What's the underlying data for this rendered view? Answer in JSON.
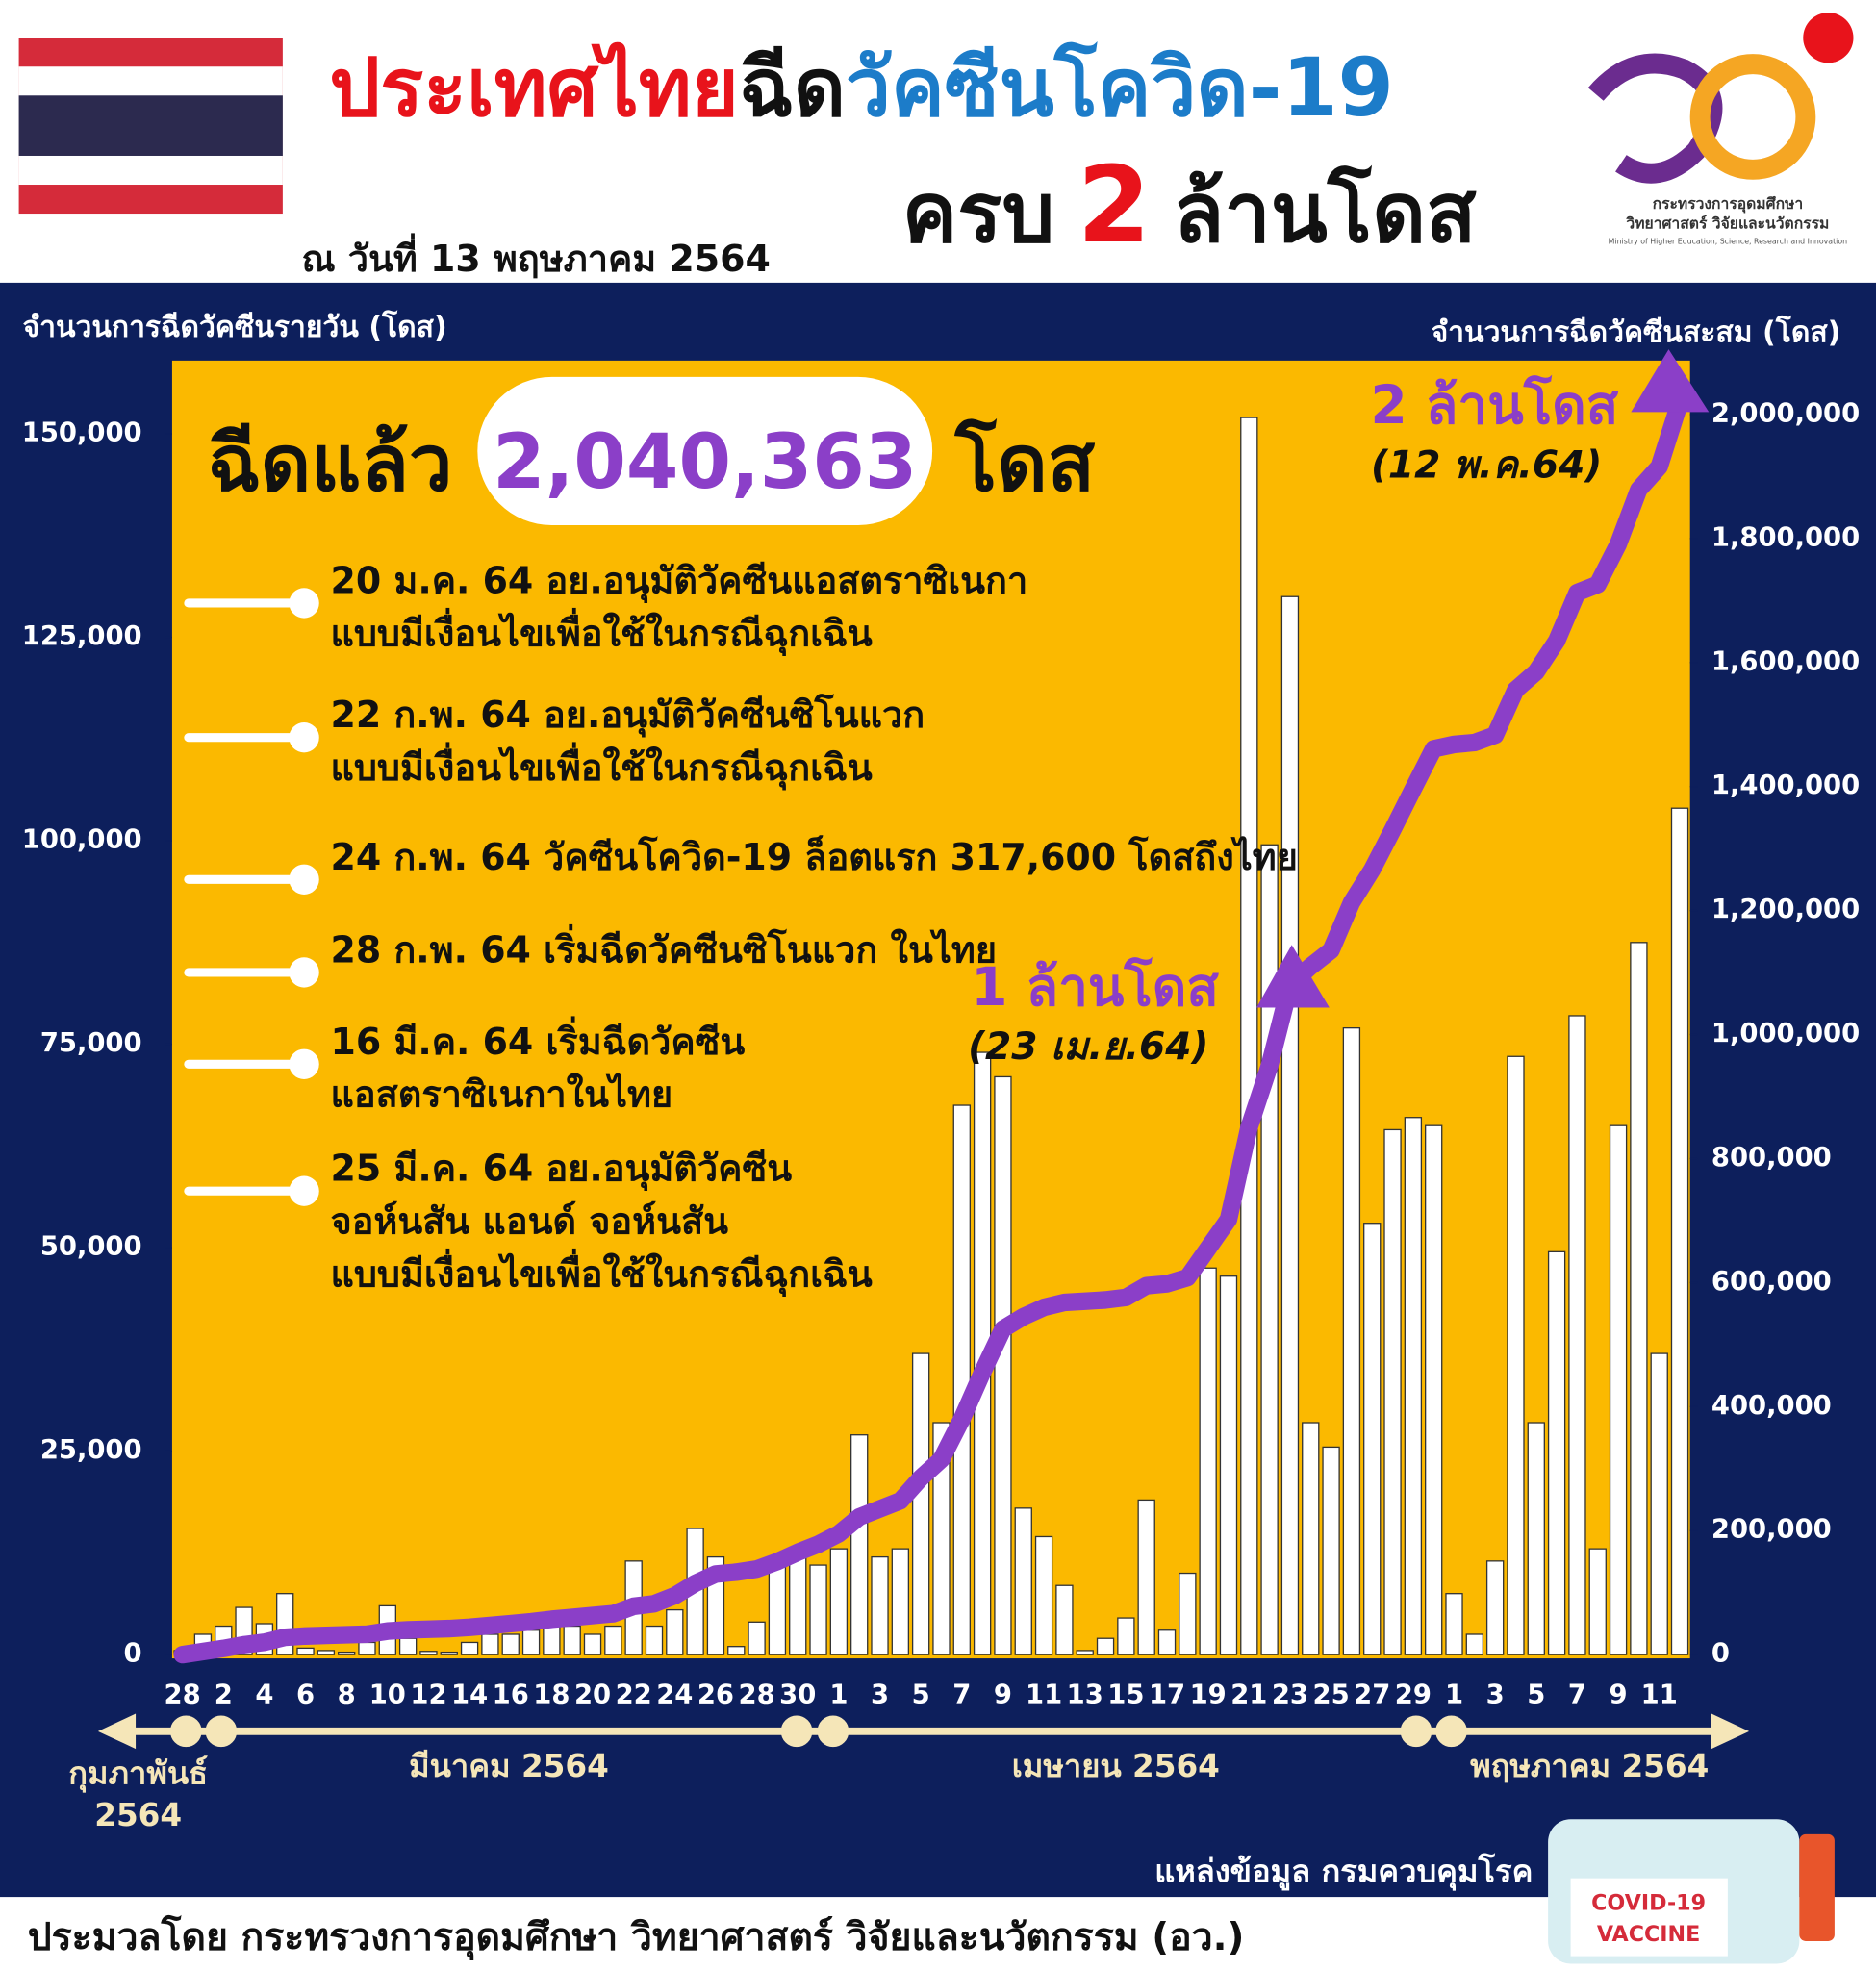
{
  "header": {
    "title_1": "ประเทศไทย",
    "title_2": "ฉีด",
    "title_3": "วัคซีนโควิด-19",
    "subtitle_1": "ครบ",
    "subtitle_2": "2",
    "subtitle_3": "ล้านโดส",
    "date": "ณ วันที่ 13 พฤษภาคม 2564"
  },
  "logo": {
    "line_1": "กระทรวงการอุดมศึกษา",
    "line_2": "วิทยาศาสตร์ วิจัยและนวัตกรรม",
    "line_3": "Ministry of Higher Education, Science, Research and Innovation"
  },
  "chart_data": {
    "type": "bar",
    "y_label": "จำนวนการฉีดวัคซีนรายวัน (โดส)",
    "y2_label": "จำนวนการฉีดวัคซีนสะสม (โดส)",
    "total_prefix": "ฉีดแล้ว",
    "total": "2,040,363",
    "total_suffix": "โดส",
    "events": [
      {
        "lines": [
          "20 ม.ค. 64 อย.อนุมัติวัคซีนแอสตราซิเนกา",
          "แบบมีเงื่อนไขเพื่อใช้ในกรณีฉุกเฉิน"
        ]
      },
      {
        "lines": [
          "22 ก.พ. 64 อย.อนุมัติวัคซีนซิโนแวก",
          "แบบมีเงื่อนไขเพื่อใช้ในกรณีฉุกเฉิน"
        ]
      },
      {
        "lines": [
          "24 ก.พ. 64 วัคซีนโควิด-19 ล็อตแรก 317,600 โดสถึงไทย"
        ]
      },
      {
        "lines": [
          "28 ก.พ. 64 เริ่มฉีดวัคซีนซิโนแวก ในไทย"
        ]
      },
      {
        "lines": [
          "16 มี.ค. 64 เริ่มฉีดวัคซีน",
          "แอสตราซิเนกาในไทย"
        ]
      },
      {
        "lines": [
          "25 มี.ค. 64 อย.อนุมัติวัคซีน",
          "จอห์นสัน แอนด์ จอห์นสัน",
          "แบบมีเงื่อนไขเพื่อใช้ในกรณีฉุกเฉิน"
        ]
      }
    ],
    "annotations": [
      {
        "text": "1 ล้านโดส",
        "date": "(23 เม.ย.64)"
      },
      {
        "text": "2 ล้านโดส",
        "date": "(12 พ.ค.64)"
      }
    ],
    "months": [
      [
        "กุมภาพันธ์",
        "2564"
      ],
      [
        "มีนาคม 2564"
      ],
      [
        "เมษายน 2564"
      ],
      [
        "พฤษภาคม 2564"
      ]
    ],
    "categories": [
      "28",
      null,
      "2",
      null,
      "4",
      null,
      "6",
      null,
      "8",
      null,
      "10",
      null,
      "12",
      null,
      "14",
      null,
      "16",
      null,
      "18",
      null,
      "20",
      null,
      "22",
      null,
      "24",
      null,
      "26",
      null,
      "28",
      null,
      "30",
      null,
      "1",
      null,
      "3",
      null,
      "5",
      null,
      "7",
      null,
      "9",
      null,
      "11",
      null,
      "13",
      null,
      "15",
      null,
      "17",
      null,
      "19",
      null,
      "21",
      null,
      "23",
      null,
      "25",
      null,
      "27",
      null,
      "29",
      null,
      "1",
      null,
      "3",
      null,
      "5",
      null,
      "7",
      null,
      "9",
      null,
      "11",
      null
    ],
    "series": [
      {
        "type": "bar",
        "color": "#ffffff",
        "values": [
          500,
          2500,
          3500,
          5800,
          3800,
          7500,
          800,
          500,
          300,
          1500,
          6000,
          2000,
          400,
          300,
          1500,
          2500,
          2500,
          3000,
          3500,
          3500,
          2500,
          3500,
          11500,
          3500,
          5500,
          15500,
          12000,
          1000,
          4000,
          11000,
          13000,
          11000,
          13000,
          27000,
          12000,
          13000,
          37000,
          28500,
          67500,
          74000,
          71000,
          18000,
          14500,
          8500,
          500,
          2000,
          4500,
          19000,
          3000,
          10000,
          47500,
          46500,
          152000,
          99500,
          130000,
          28500,
          25500,
          77000,
          53000,
          64500,
          66000,
          65000,
          7500,
          2500,
          11500,
          73500,
          28500,
          49500,
          78500,
          13000,
          65000,
          87500,
          37000,
          104000
        ]
      },
      {
        "type": "line",
        "axis": "y2",
        "color": "#8b3fc8",
        "values": [
          0,
          5000,
          10000,
          16000,
          20000,
          28000,
          30000,
          31000,
          32000,
          33000,
          38000,
          40000,
          41000,
          42000,
          44000,
          47000,
          50000,
          53000,
          57000,
          60000,
          63000,
          66000,
          78000,
          82000,
          95000,
          115000,
          130000,
          133000,
          138000,
          150000,
          165000,
          178000,
          195000,
          222000,
          235000,
          248000,
          285000,
          315000,
          380000,
          455000,
          525000,
          545000,
          560000,
          568000,
          570000,
          572000,
          576000,
          595000,
          598000,
          608000,
          655000,
          702000,
          850000,
          950000,
          1080000,
          1110000,
          1136000,
          1213000,
          1266000,
          1330000,
          1396000,
          1461000,
          1468000,
          1471000,
          1483000,
          1556000,
          1585000,
          1635000,
          1713000,
          1726000,
          1791000,
          1879000,
          1916000,
          2020000
        ]
      }
    ],
    "ylim": [
      0,
      159000
    ],
    "yticks": [
      0,
      {
        "value": 25000,
        "label": "25,000"
      },
      {
        "value": 50000,
        "label": "50,000"
      },
      {
        "value": 75000,
        "label": "75,000"
      },
      {
        "value": 100000,
        "label": "100,000"
      },
      {
        "value": 125000,
        "label": "125,000"
      },
      {
        "value": 150000,
        "label": "150,000"
      }
    ],
    "y2lim": [
      0,
      2087000
    ],
    "y2ticks": [
      0,
      {
        "value": 200000,
        "label": "200,000"
      },
      {
        "value": 400000,
        "label": "400,000"
      },
      {
        "value": 600000,
        "label": "600,000"
      },
      {
        "value": 800000,
        "label": "800,000"
      },
      {
        "value": 1000000,
        "label": "1,000,000"
      },
      {
        "value": 1200000,
        "label": "1,200,000"
      },
      {
        "value": 1400000,
        "label": "1,400,000"
      },
      {
        "value": 1600000,
        "label": "1,600,000"
      },
      {
        "value": 1800000,
        "label": "1,800,000"
      },
      {
        "value": 2000000,
        "label": "2,000,000"
      }
    ]
  },
  "source": "แหล่งข้อมูล กรมควบคุมโรค",
  "vaccine_label": [
    "COVID-19",
    "VACCINE"
  ],
  "footer": "ประมวลโดย กระทรวงการอุดมศึกษา วิทยาศาสตร์ วิจัยและนวัตกรรม (อว.)"
}
